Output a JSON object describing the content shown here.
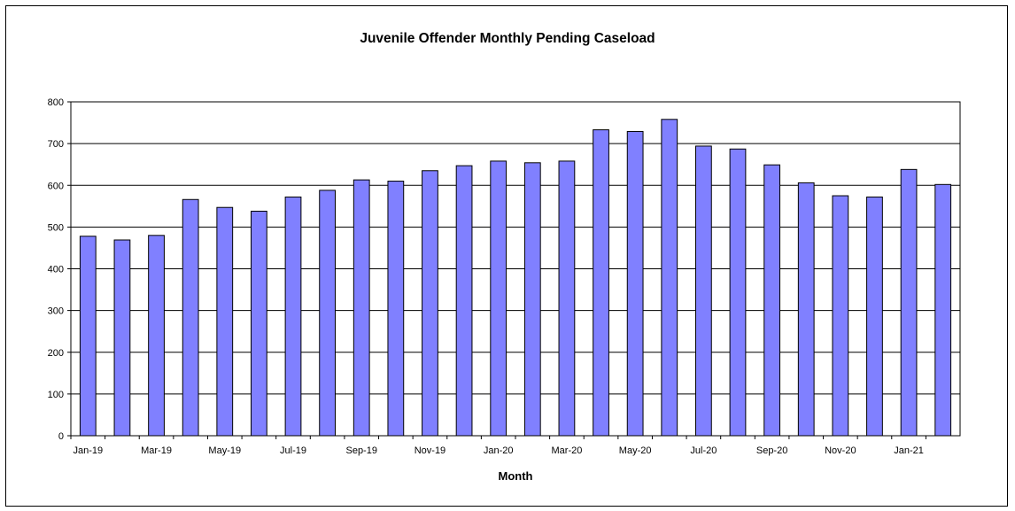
{
  "chart_data": {
    "type": "bar",
    "title": "Juvenile Offender Monthly Pending Caseload",
    "xlabel": "Month",
    "ylabel": "",
    "ylim": [
      0,
      800
    ],
    "yticks": [
      0,
      100,
      200,
      300,
      400,
      500,
      600,
      700,
      800
    ],
    "grid": true,
    "legend": "none",
    "bar_color": "#8080ff",
    "categories": [
      "Jan-19",
      "Feb-19",
      "Mar-19",
      "Apr-19",
      "May-19",
      "Jun-19",
      "Jul-19",
      "Aug-19",
      "Sep-19",
      "Oct-19",
      "Nov-19",
      "Dec-19",
      "Jan-20",
      "Feb-20",
      "Mar-20",
      "Apr-20",
      "May-20",
      "Jun-20",
      "Jul-20",
      "Aug-20",
      "Sep-20",
      "Oct-20",
      "Nov-20",
      "Dec-20",
      "Jan-21",
      "Feb-21"
    ],
    "tick_labels": [
      "Jan-19",
      "",
      "Mar-19",
      "",
      "May-19",
      "",
      "Jul-19",
      "",
      "Sep-19",
      "",
      "Nov-19",
      "",
      "Jan-20",
      "",
      "Mar-20",
      "",
      "May-20",
      "",
      "Jul-20",
      "",
      "Sep-20",
      "",
      "Nov-20",
      "",
      "Jan-21",
      ""
    ],
    "values": [
      478,
      469,
      480,
      566,
      547,
      538,
      572,
      588,
      613,
      610,
      635,
      647,
      658,
      654,
      658,
      733,
      729,
      758,
      694,
      687,
      649,
      606,
      575,
      572,
      638,
      602
    ]
  }
}
